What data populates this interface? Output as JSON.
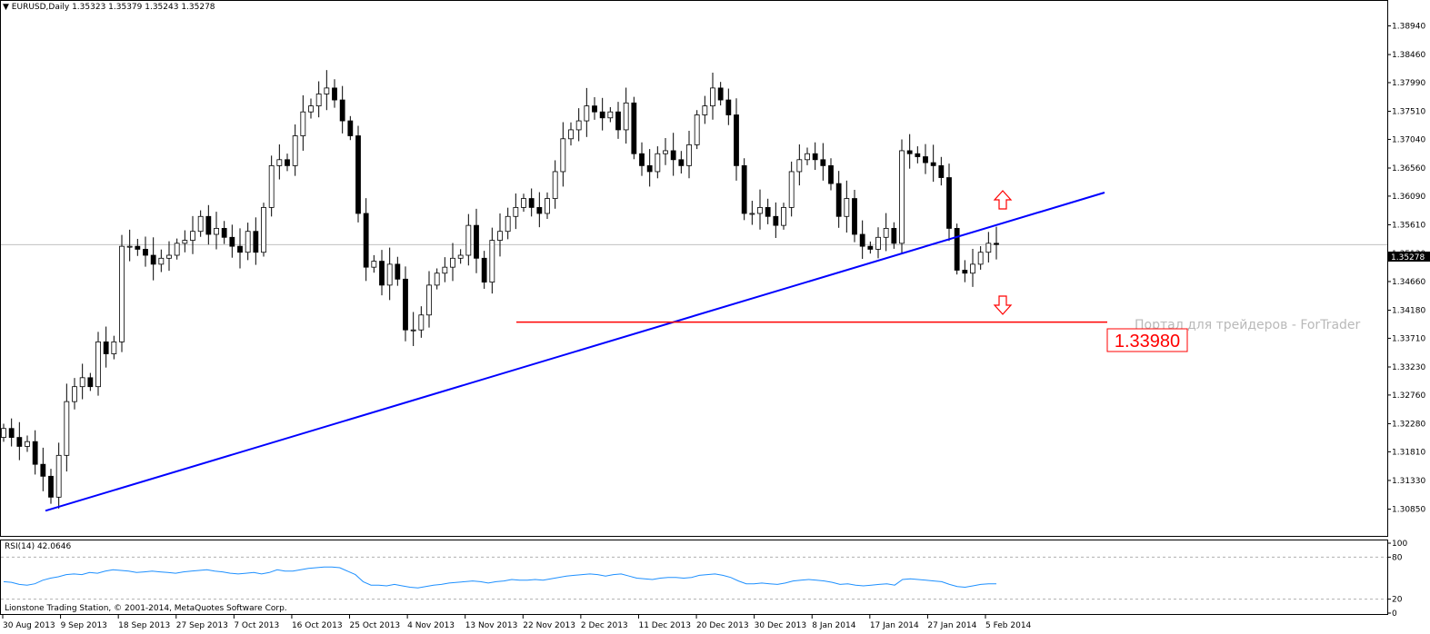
{
  "header": {
    "symbol": "EURUSD,Daily",
    "ohlc": "1.35323 1.35379 1.35243 1.35278"
  },
  "rsi_header": "RSI(14) 42.0646",
  "copyright": "Lionstone Trading Station, © 2001-2014, MetaQuotes Software Corp.",
  "watermark": "Портал для трейдеров - ForTrader",
  "current_price_label": "1.35278",
  "level_label": "1.33980",
  "colors": {
    "trendline": "#0000ff",
    "level_line": "#ff0000",
    "arrows": "#ff0000",
    "rsi_line": "#1e90ff",
    "grid": "#c0c0c0"
  },
  "chart_data": [
    {
      "type": "candlestick",
      "title": "EURUSD,Daily",
      "ylim": [
        1.3062,
        1.3921
      ],
      "y_ticks": [
        "1.38940",
        "1.38460",
        "1.37990",
        "1.37510",
        "1.37040",
        "1.36560",
        "1.36090",
        "1.35610",
        "1.35130",
        "1.34660",
        "1.34180",
        "1.33710",
        "1.33230",
        "1.32760",
        "1.32280",
        "1.31810",
        "1.31330",
        "1.30850"
      ],
      "x_ticks": [
        "30 Aug 2013",
        "9 Sep 2013",
        "18 Sep 2013",
        "27 Sep 2013",
        "7 Oct 2013",
        "16 Oct 2013",
        "25 Oct 2013",
        "4 Nov 2013",
        "13 Nov 2013",
        "22 Nov 2013",
        "2 Dec 2013",
        "11 Dec 2013",
        "20 Dec 2013",
        "30 Dec 2013",
        "8 Jan 2014",
        "17 Jan 2014",
        "27 Jan 2014",
        "5 Feb 2014"
      ],
      "close_path": [
        1.322,
        1.3205,
        1.319,
        1.3198,
        1.316,
        1.314,
        1.3105,
        1.3175,
        1.3265,
        1.329,
        1.3305,
        1.329,
        1.3365,
        1.3345,
        1.3365,
        1.3525,
        1.3525,
        1.352,
        1.351,
        1.3495,
        1.3505,
        1.351,
        1.353,
        1.3535,
        1.355,
        1.3575,
        1.3545,
        1.3555,
        1.354,
        1.3525,
        1.3515,
        1.355,
        1.3515,
        1.359,
        1.366,
        1.367,
        1.366,
        1.371,
        1.375,
        1.376,
        1.378,
        1.379,
        1.377,
        1.3735,
        1.371,
        1.358,
        1.349,
        1.35,
        1.346,
        1.3495,
        1.347,
        1.3385,
        1.3385,
        1.341,
        1.346,
        1.348,
        1.349,
        1.3505,
        1.351,
        1.356,
        1.3505,
        1.3465,
        1.3535,
        1.355,
        1.3575,
        1.359,
        1.3605,
        1.359,
        1.358,
        1.3605,
        1.365,
        1.3705,
        1.372,
        1.3735,
        1.376,
        1.375,
        1.374,
        1.375,
        1.372,
        1.3765,
        1.368,
        1.366,
        1.365,
        1.368,
        1.3685,
        1.367,
        1.366,
        1.3695,
        1.3745,
        1.376,
        1.379,
        1.377,
        1.3745,
        1.366,
        1.358,
        1.358,
        1.359,
        1.3575,
        1.356,
        1.359,
        1.365,
        1.367,
        1.368,
        1.367,
        1.366,
        1.363,
        1.3575,
        1.3605,
        1.3545,
        1.3525,
        1.352,
        1.354,
        1.3555,
        1.353,
        1.3685,
        1.368,
        1.3675,
        1.3665,
        1.366,
        1.364,
        1.3555,
        1.3485,
        1.348,
        1.3495,
        1.3515,
        1.353,
        1.3528
      ],
      "last_close": 1.35278,
      "trendline": {
        "from": [
          "30 Aug 2013",
          1.3105
        ],
        "to": [
          "after 5 Feb 2014",
          1.3628
        ]
      },
      "horizontal_level": 1.3398
    },
    {
      "type": "line",
      "title": "RSI(14) 42.0646",
      "ylim": [
        0,
        100
      ],
      "y_ticks": [
        "100",
        "80",
        "20",
        "0"
      ],
      "levels": [
        80,
        20
      ],
      "last_value": 42.0646,
      "values": [
        45,
        44,
        41,
        40,
        42,
        47,
        50,
        52,
        55,
        56,
        55,
        58,
        57,
        60,
        62,
        61,
        60,
        58,
        59,
        60,
        59,
        58,
        57,
        59,
        60,
        61,
        62,
        60,
        59,
        57,
        56,
        57,
        58,
        56,
        58,
        62,
        60,
        60,
        62,
        64,
        65,
        66,
        66,
        65,
        60,
        55,
        45,
        40,
        40,
        39,
        41,
        39,
        37,
        36,
        38,
        40,
        41,
        43,
        44,
        45,
        46,
        45,
        43,
        45,
        46,
        48,
        47,
        47,
        48,
        47,
        49,
        51,
        53,
        54,
        55,
        56,
        55,
        53,
        55,
        56,
        53,
        50,
        49,
        48,
        50,
        51,
        51,
        50,
        51,
        54,
        55,
        56,
        54,
        51,
        46,
        42,
        42,
        43,
        42,
        41,
        43,
        46,
        47,
        48,
        47,
        46,
        44,
        41,
        42,
        40,
        39,
        40,
        41,
        42,
        40,
        48,
        49,
        48,
        47,
        46,
        45,
        41,
        38,
        37,
        39,
        41,
        42,
        42
      ]
    }
  ]
}
